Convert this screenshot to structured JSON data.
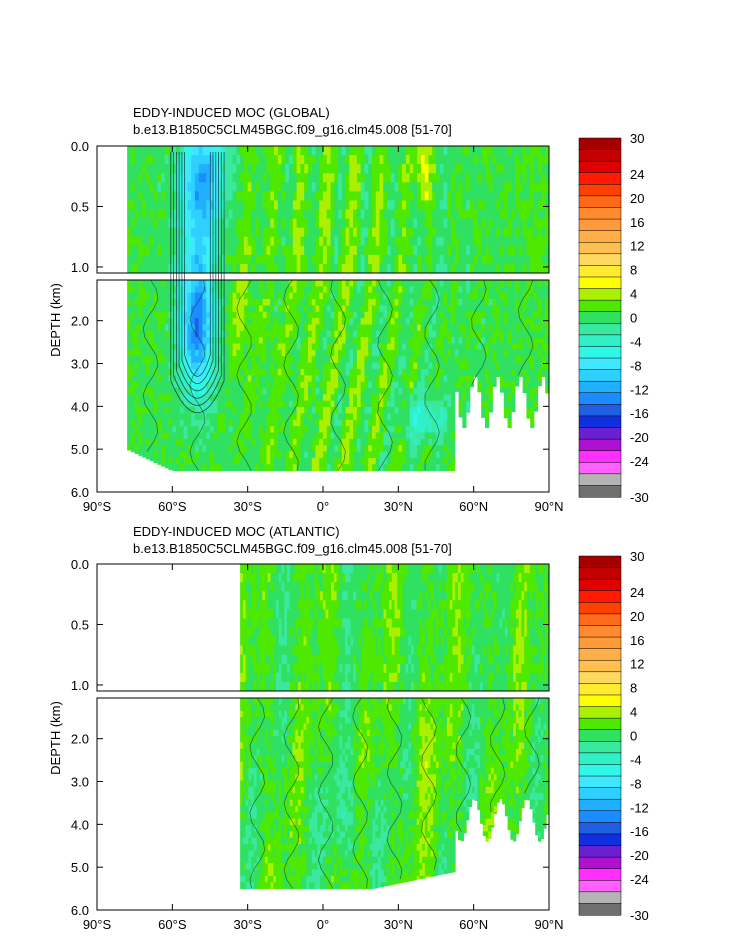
{
  "chart_data": [
    {
      "type": "heatmap",
      "title": "EDDY-INDUCED MOC (GLOBAL)",
      "subtitle": "b.e13.B1850C5CLM45BGC.f09_g16.clm45.008 [51-70]",
      "xlabel": "",
      "ylabel": "DEPTH (km)",
      "x_ticks": [
        "90°S",
        "60°S",
        "30°S",
        "0°",
        "30°N",
        "60°N",
        "90°N"
      ],
      "x_tick_values": [
        -90,
        -60,
        -30,
        0,
        30,
        60,
        90
      ],
      "y_ticks_upper": [
        "0.0",
        "0.5",
        "1.0"
      ],
      "y_ticks_upper_values": [
        0.0,
        0.5,
        1.0
      ],
      "y_ticks_lower": [
        "2.0",
        "3.0",
        "4.0",
        "5.0",
        "6.0"
      ],
      "y_ticks_lower_values": [
        2.0,
        3.0,
        4.0,
        5.0,
        6.0
      ],
      "xlim": [
        -90,
        90
      ],
      "ylim_upper": [
        0,
        1.05
      ],
      "ylim_lower": [
        1.05,
        6.0
      ],
      "data_extent": {
        "lat_min": -78,
        "lat_max": 90,
        "depth_max": 5.5
      },
      "features": [
        {
          "lat": -50,
          "depth": 2.0,
          "value": -16,
          "note": "deep negative cell"
        },
        {
          "lat": -48,
          "depth": 0.3,
          "value": -10
        },
        {
          "lat": 40,
          "depth": 0.15,
          "value": 6
        },
        {
          "lat": 40,
          "depth": 4.3,
          "value": -6
        },
        {
          "lat": -35,
          "depth": 2.0,
          "value": 2
        }
      ]
    },
    {
      "type": "heatmap",
      "title": "EDDY-INDUCED MOC (ATLANTIC)",
      "subtitle": "b.e13.B1850C5CLM45BGC.f09_g16.clm45.008 [51-70]",
      "xlabel": "",
      "ylabel": "DEPTH (km)",
      "x_ticks": [
        "90°S",
        "60°S",
        "30°S",
        "0°",
        "30°N",
        "60°N",
        "90°N"
      ],
      "x_tick_values": [
        -90,
        -60,
        -30,
        0,
        30,
        60,
        90
      ],
      "y_ticks_upper": [
        "0.0",
        "0.5",
        "1.0"
      ],
      "y_ticks_upper_values": [
        0.0,
        0.5,
        1.0
      ],
      "y_ticks_lower": [
        "2.0",
        "3.0",
        "4.0",
        "5.0",
        "6.0"
      ],
      "y_ticks_lower_values": [
        2.0,
        3.0,
        4.0,
        5.0,
        6.0
      ],
      "xlim": [
        -90,
        90
      ],
      "ylim_upper": [
        0,
        1.05
      ],
      "ylim_lower": [
        1.05,
        6.0
      ],
      "data_extent": {
        "lat_min": -33,
        "lat_max": 90,
        "depth_max": 5.5
      },
      "features": [
        {
          "lat": 0,
          "depth": 0.5,
          "value": 2
        },
        {
          "lat": 40,
          "depth": 2.0,
          "value": 2
        },
        {
          "lat": 10,
          "depth": 4.0,
          "value": -2
        }
      ]
    }
  ],
  "colorbar": {
    "labels": [
      "30",
      "24",
      "20",
      "16",
      "12",
      "8",
      "4",
      "0",
      "-4",
      "-8",
      "-12",
      "-16",
      "-20",
      "-24",
      "-30"
    ],
    "label_values": [
      30,
      24,
      20,
      16,
      12,
      8,
      4,
      0,
      -4,
      -8,
      -12,
      -16,
      -20,
      -24,
      -30
    ],
    "levels": [
      30,
      28,
      26,
      24,
      22,
      20,
      18,
      16,
      14,
      12,
      10,
      8,
      6,
      4,
      2,
      0,
      -2,
      -4,
      -6,
      -8,
      -10,
      -12,
      -14,
      -16,
      -18,
      -20,
      -22,
      -24,
      -26,
      -28,
      -30
    ],
    "colors": [
      "#a40000",
      "#c40000",
      "#e00000",
      "#ff1a00",
      "#ff4000",
      "#ff6a1a",
      "#ff8a30",
      "#ff9a3a",
      "#ffae48",
      "#ffc050",
      "#ffd860",
      "#ffec30",
      "#fcff00",
      "#aaf000",
      "#4ee800",
      "#30e060",
      "#3ae8a0",
      "#30f0c8",
      "#30f8e8",
      "#40e8ff",
      "#2ed0ff",
      "#20b0ff",
      "#1a8cff",
      "#2060e0",
      "#1030e0",
      "#6a20d0",
      "#b010d0",
      "#ff30ff",
      "#ff60ff",
      "#b4b4b4",
      "#707070"
    ]
  }
}
